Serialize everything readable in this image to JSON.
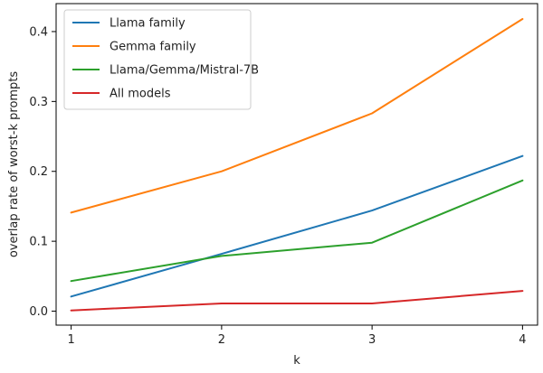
{
  "chart_data": {
    "type": "line",
    "x": [
      1,
      2,
      3,
      4
    ],
    "xticks": [
      "1",
      "2",
      "3",
      "4"
    ],
    "yticks": [
      "0.0",
      "0.1",
      "0.2",
      "0.3",
      "0.4"
    ],
    "ytick_values": [
      0.0,
      0.1,
      0.2,
      0.3,
      0.4
    ],
    "xlabel": "k",
    "ylabel": "overlap rate of worst-k prompts",
    "xlim": [
      0.9,
      4.1
    ],
    "ylim": [
      -0.02,
      0.44
    ],
    "grid": false,
    "legend_position": "top-left",
    "series": [
      {
        "name": "Llama family",
        "color": "#1f77b4",
        "values": [
          0.021,
          0.082,
          0.144,
          0.222
        ]
      },
      {
        "name": "Gemma family",
        "color": "#ff7f0e",
        "values": [
          0.141,
          0.2,
          0.283,
          0.418
        ]
      },
      {
        "name": "Llama/Gemma/Mistral-7B",
        "color": "#2ca02c",
        "values": [
          0.043,
          0.079,
          0.098,
          0.187
        ]
      },
      {
        "name": "All models",
        "color": "#d62728",
        "values": [
          0.001,
          0.011,
          0.011,
          0.029
        ]
      }
    ]
  }
}
